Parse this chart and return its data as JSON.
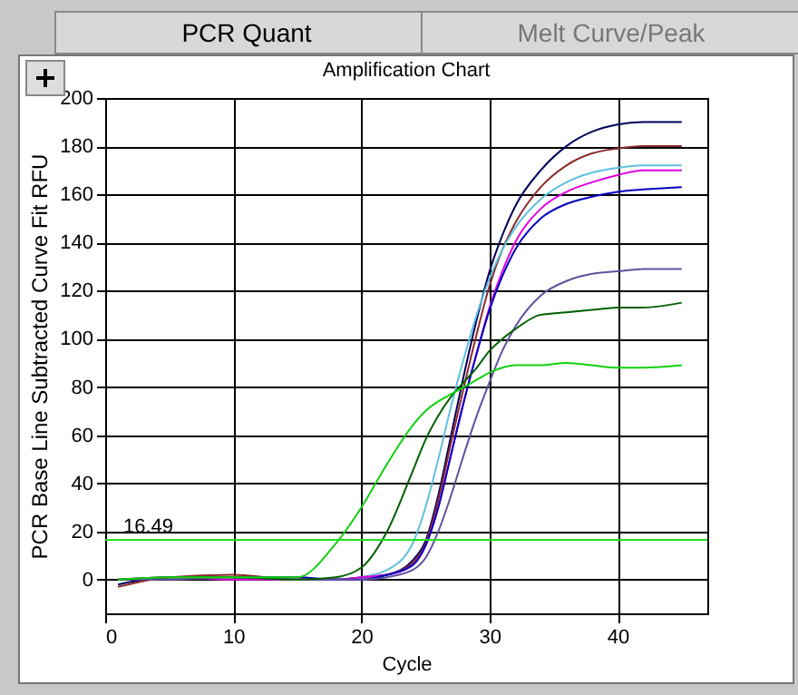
{
  "chart_data": {
    "type": "line",
    "title": "Amplification Chart",
    "xlabel": "Cycle",
    "ylabel": "PCR Base Line Subtracted Curve Fit RFU",
    "annotations": [
      "PCR Quant",
      "Melt Curve/Peak"
    ],
    "x": [
      1,
      5,
      10,
      15,
      18,
      20,
      22,
      24,
      25,
      26,
      27,
      28,
      29,
      30,
      31,
      32,
      34,
      36,
      38,
      40,
      42,
      45
    ],
    "series": [
      {
        "color": "#00005a",
        "values": [
          -2,
          1,
          1,
          0,
          0,
          1,
          2,
          8,
          16,
          35,
          60,
          85,
          108,
          128,
          143,
          155,
          170,
          180,
          186,
          189,
          190,
          190
        ]
      },
      {
        "color": "#8b2a2a",
        "values": [
          -3,
          1,
          2,
          0,
          0,
          0,
          2,
          7,
          15,
          33,
          57,
          80,
          102,
          122,
          137,
          148,
          163,
          172,
          177,
          179,
          180,
          180
        ]
      },
      {
        "color": "#60c0e0",
        "values": [
          null,
          null,
          null,
          null,
          0,
          1,
          4,
          15,
          30,
          50,
          72,
          92,
          110,
          125,
          137,
          146,
          158,
          165,
          169,
          171,
          172,
          172
        ]
      },
      {
        "color": "#e000e0",
        "values": [
          0,
          1,
          0,
          0,
          0,
          1,
          2,
          6,
          14,
          30,
          52,
          74,
          94,
          113,
          128,
          140,
          154,
          161,
          165,
          168,
          170,
          170
        ]
      },
      {
        "color": "#0000c0",
        "values": [
          null,
          null,
          1,
          1,
          0,
          0,
          2,
          6,
          14,
          30,
          52,
          74,
          94,
          112,
          126,
          137,
          150,
          156,
          159,
          161,
          162,
          163
        ]
      },
      {
        "color": "#6050a0",
        "values": [
          0,
          0,
          1,
          0,
          0,
          0,
          1,
          4,
          9,
          20,
          35,
          52,
          68,
          82,
          95,
          105,
          118,
          124,
          127,
          128,
          129,
          129
        ]
      },
      {
        "color": "#006000",
        "values": [
          0,
          1,
          1,
          0,
          1,
          5,
          20,
          45,
          58,
          68,
          76,
          82,
          88,
          95,
          100,
          104,
          110,
          111,
          112,
          113,
          113,
          115
        ]
      },
      {
        "color": "#10d010",
        "values": [
          0,
          1,
          1,
          1,
          15,
          30,
          48,
          64,
          70,
          74,
          77,
          80,
          83,
          86,
          88,
          89,
          89,
          90,
          89,
          88,
          88,
          89
        ]
      }
    ],
    "xlim": [
      0,
      47
    ],
    "ylim": [
      -14,
      200
    ],
    "xticks": [
      0,
      10,
      20,
      30,
      40
    ],
    "yticks": [
      0,
      20,
      40,
      60,
      80,
      100,
      120,
      140,
      160,
      180,
      200
    ],
    "ref_lines": [
      {
        "axis": "y",
        "value": 16.49,
        "label": "16.49",
        "color": "#20e020"
      }
    ],
    "grid": true,
    "legend": false
  }
}
